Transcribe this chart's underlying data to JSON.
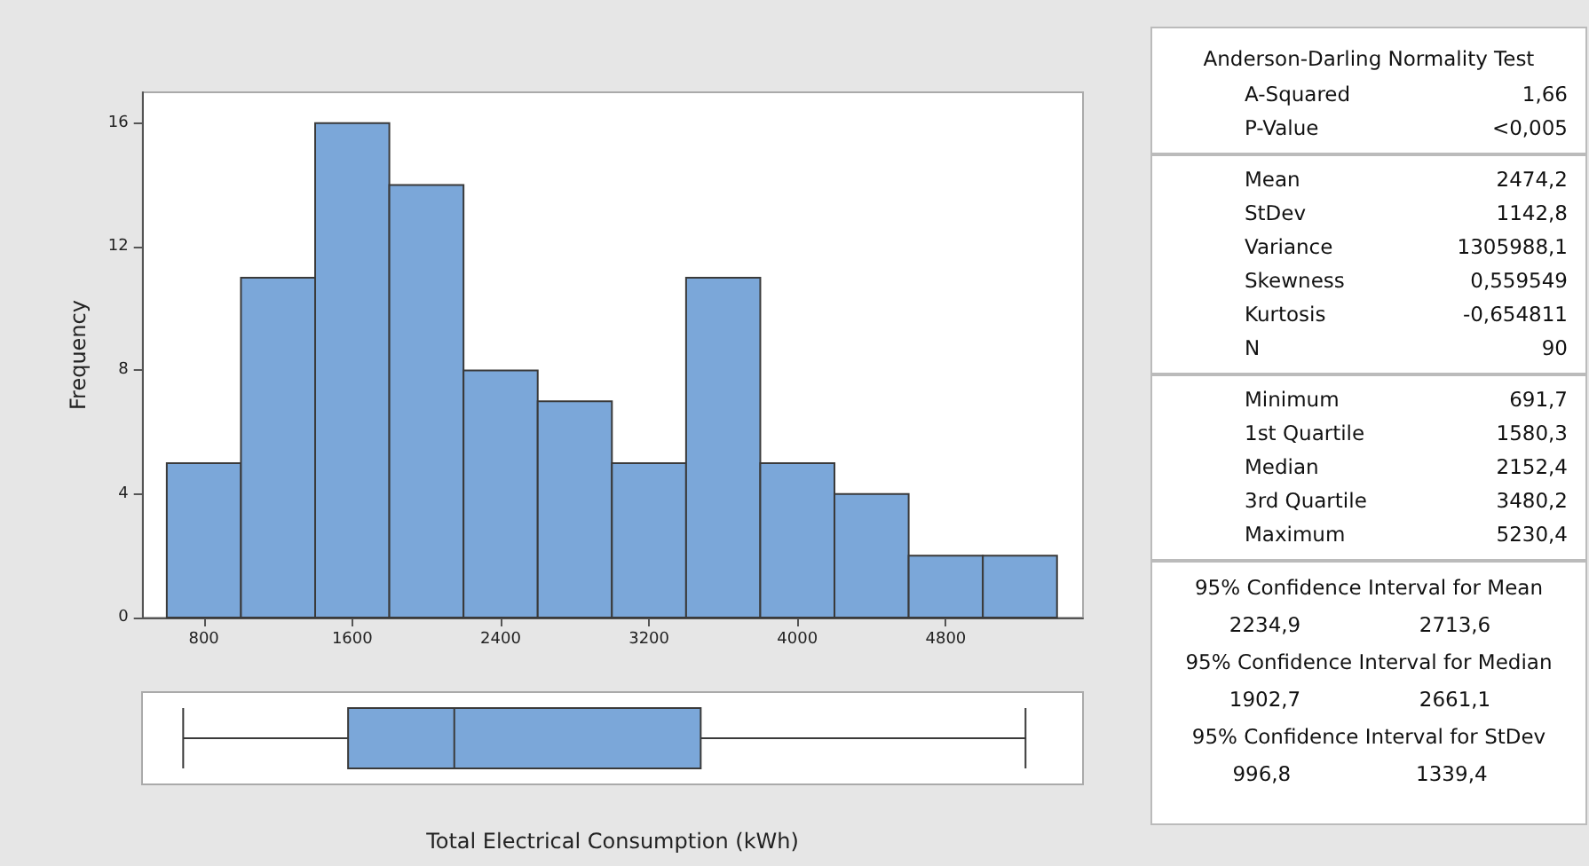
{
  "chart_data": [
    {
      "type": "histogram",
      "ylabel": "Frequency",
      "bins": [
        600,
        1000,
        1400,
        1800,
        2200,
        2600,
        3000,
        3400,
        3800,
        4200,
        4600,
        5000,
        5400
      ],
      "values": [
        5,
        11,
        16,
        14,
        8,
        7,
        5,
        11,
        5,
        4,
        2,
        2
      ],
      "color": "#7ba7d9",
      "xlim": [
        470,
        5540
      ],
      "xticks": [
        800,
        1600,
        2400,
        3200,
        4000,
        4800
      ],
      "ylim": [
        0,
        17
      ],
      "yticks": [
        0,
        4,
        8,
        12,
        16
      ],
      "grid": false
    },
    {
      "type": "box",
      "orientation": "horizontal",
      "xlabel": "Total Electrical Consumption (kWh)",
      "categories": [
        null
      ],
      "color": "#7ba7d9",
      "boxes": [
        {
          "low": 691.7,
          "q1": 1580.3,
          "median": 2152.4,
          "q3": 3480.2,
          "high": 5230.4
        }
      ],
      "xlim": [
        470,
        5540
      ],
      "xticks": [
        800,
        1600,
        2400,
        3200,
        4000,
        4800
      ],
      "tick_labels": false,
      "grid": false
    },
    {
      "type": "other",
      "annotations": [
        "Anderson-Darling Normality Test",
        "A-Squared",
        "1,66",
        "P-Value",
        "<0,005",
        "Mean",
        "2474,2",
        "StDev",
        "1142,8",
        "Variance",
        "1305988,1",
        "Skewness",
        "0,559549",
        "Kurtosis",
        "-0,654811",
        "N",
        "90",
        "Minimum",
        "691,7",
        "1st Quartile",
        "1580,3",
        "Median",
        "2152,4",
        "3rd Quartile",
        "3480,2",
        "Maximum",
        "5230,4",
        "95% Confidence Interval for Mean",
        "2234,9",
        "2713,6",
        "95% Confidence Interval for Median",
        "1902,7",
        "2661,1",
        "95% Confidence Interval for StDev",
        "996,8",
        "1339,4"
      ]
    }
  ]
}
